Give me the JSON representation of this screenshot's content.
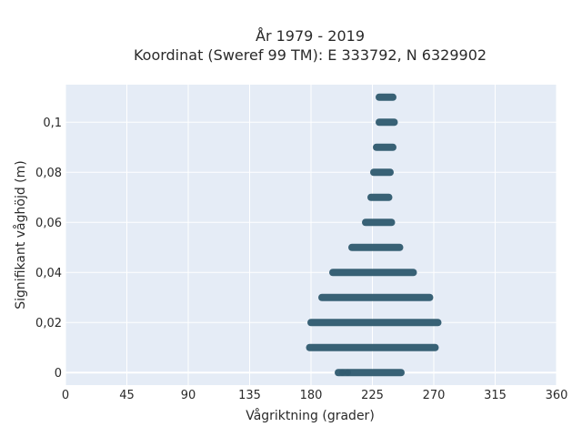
{
  "chart_data": {
    "type": "scatter",
    "title": "År 1979 - 2019",
    "subtitle": "Koordinat (Sweref 99 TM): E 333792, N 6329902",
    "xlabel": "Vågriktning (grader)",
    "ylabel": "Signifikant våghöjd (m)",
    "xlim": [
      0,
      360
    ],
    "ylim": [
      -0.005,
      0.115
    ],
    "x_ticks": [
      0,
      45,
      90,
      135,
      180,
      225,
      270,
      315,
      360
    ],
    "x_tick_labels": [
      "0",
      "45",
      "90",
      "135",
      "180",
      "225",
      "270",
      "315",
      "360"
    ],
    "y_ticks": [
      0,
      0.02,
      0.04,
      0.06,
      0.08,
      0.1
    ],
    "y_tick_labels": [
      "0",
      "0,02",
      "0,04",
      "0,06",
      "0,08",
      "0,1"
    ],
    "grid": true,
    "marker_color": "#2f5a6f",
    "background_color": "#e5ecf6",
    "series": [
      {
        "bands": [
          {
            "y": 0.11,
            "x_min": 230,
            "x_max": 240
          },
          {
            "y": 0.1,
            "x_min": 230,
            "x_max": 241
          },
          {
            "y": 0.09,
            "x_min": 228,
            "x_max": 240
          },
          {
            "y": 0.08,
            "x_min": 226,
            "x_max": 238
          },
          {
            "y": 0.07,
            "x_min": 224,
            "x_max": 237
          },
          {
            "y": 0.06,
            "x_min": 220,
            "x_max": 239
          },
          {
            "y": 0.05,
            "x_min": 210,
            "x_max": 245
          },
          {
            "y": 0.04,
            "x_min": 196,
            "x_max": 255
          },
          {
            "y": 0.03,
            "x_min": 188,
            "x_max": 267
          },
          {
            "y": 0.02,
            "x_min": 180,
            "x_max": 273
          },
          {
            "y": 0.01,
            "x_min": 179,
            "x_max": 271
          },
          {
            "y": 0.0,
            "x_min": 200,
            "x_max": 246
          }
        ],
        "isolated_points": [
          {
            "x": 203,
            "y": 0
          },
          {
            "x": 207,
            "y": 0
          }
        ]
      }
    ]
  }
}
